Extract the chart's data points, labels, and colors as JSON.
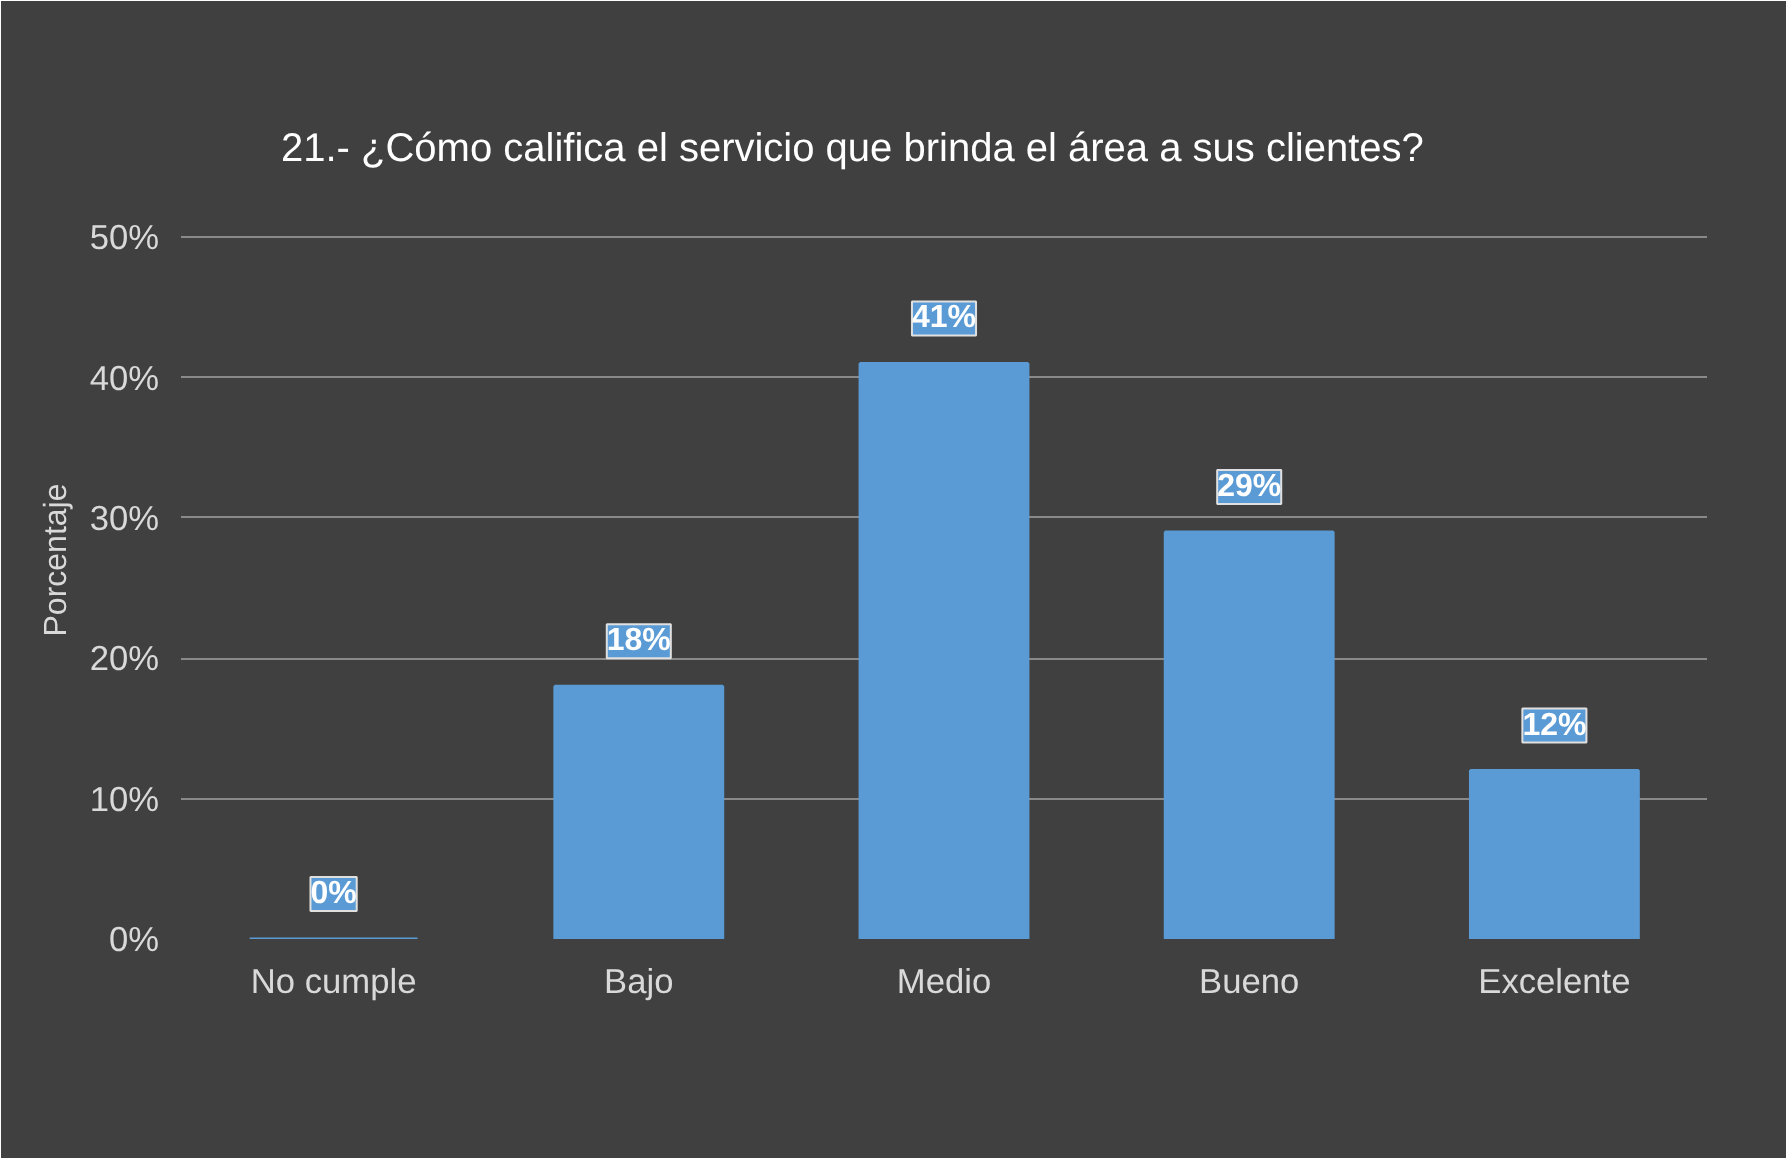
{
  "chart_data": {
    "type": "bar",
    "title": "21.- ¿Cómo califica el servicio que brinda el área a sus clientes?",
    "ylabel": "Porcentaje",
    "categories": [
      "No cumple",
      "Bajo",
      "Medio",
      "Bueno",
      "Excelente"
    ],
    "values": [
      0,
      18,
      41,
      29,
      12
    ],
    "value_labels": [
      "0%",
      "18%",
      "41%",
      "29%",
      "12%"
    ],
    "color": "#5b9bd5",
    "ylim": [
      0,
      50
    ],
    "yticks": [
      {
        "value": 0,
        "label": "0%"
      },
      {
        "value": 10,
        "label": "10%"
      },
      {
        "value": 20,
        "label": "20%"
      },
      {
        "value": 30,
        "label": "30%"
      },
      {
        "value": 40,
        "label": "40%"
      },
      {
        "value": 50,
        "label": "50%"
      }
    ],
    "grid": "y"
  }
}
